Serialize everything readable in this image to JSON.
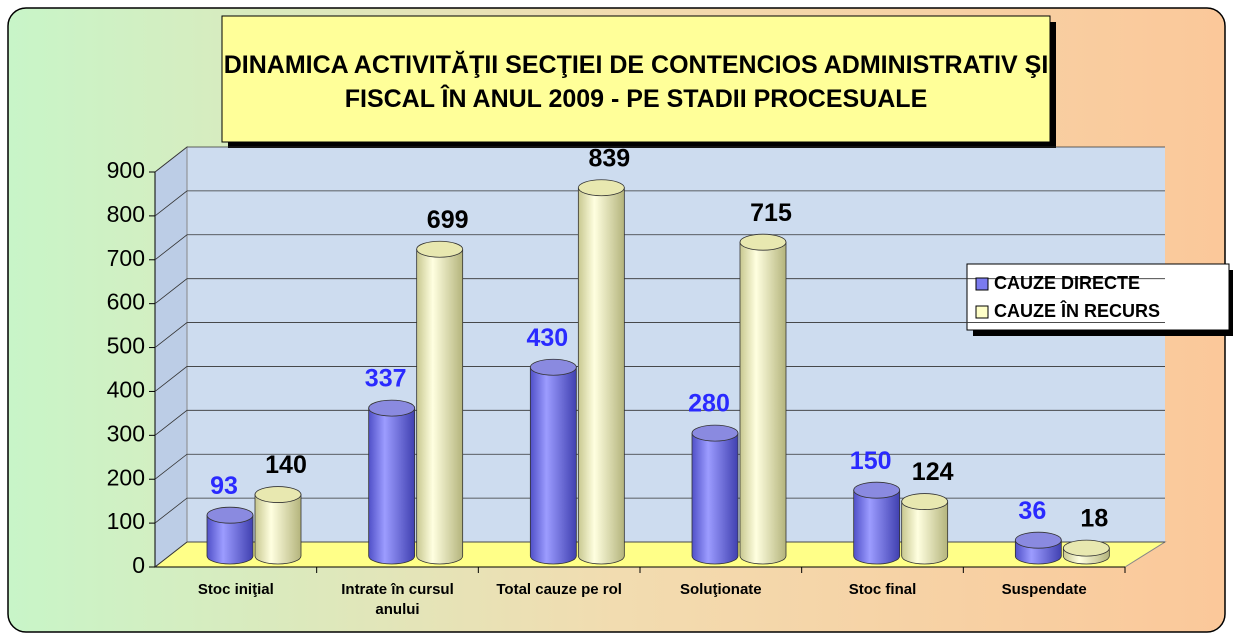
{
  "chart_data": {
    "type": "bar",
    "title": "DINAMICA ACTIVITĂŢII SECŢIEI DE CONTENCIOS ADMINISTRATIV ŞI FISCAL ÎN ANUL 2009 - PE STADII PROCESUALE",
    "categories": [
      "Stoc iniţial",
      "Intrate în cursul anului",
      "Total cauze pe rol",
      "Soluţionate",
      "Stoc final",
      "Suspendate"
    ],
    "series": [
      {
        "name": "CAUZE DIRECTE",
        "color": "#7b7bef",
        "values": [
          93,
          337,
          430,
          280,
          150,
          36
        ]
      },
      {
        "name": "CAUZE ÎN RECURS",
        "color": "#ffffc8",
        "values": [
          140,
          699,
          839,
          715,
          124,
          18
        ]
      }
    ],
    "ylim": [
      0,
      900
    ],
    "yticks": [
      0,
      100,
      200,
      300,
      400,
      500,
      600,
      700,
      800,
      900
    ],
    "grid": true,
    "legend": "right"
  }
}
